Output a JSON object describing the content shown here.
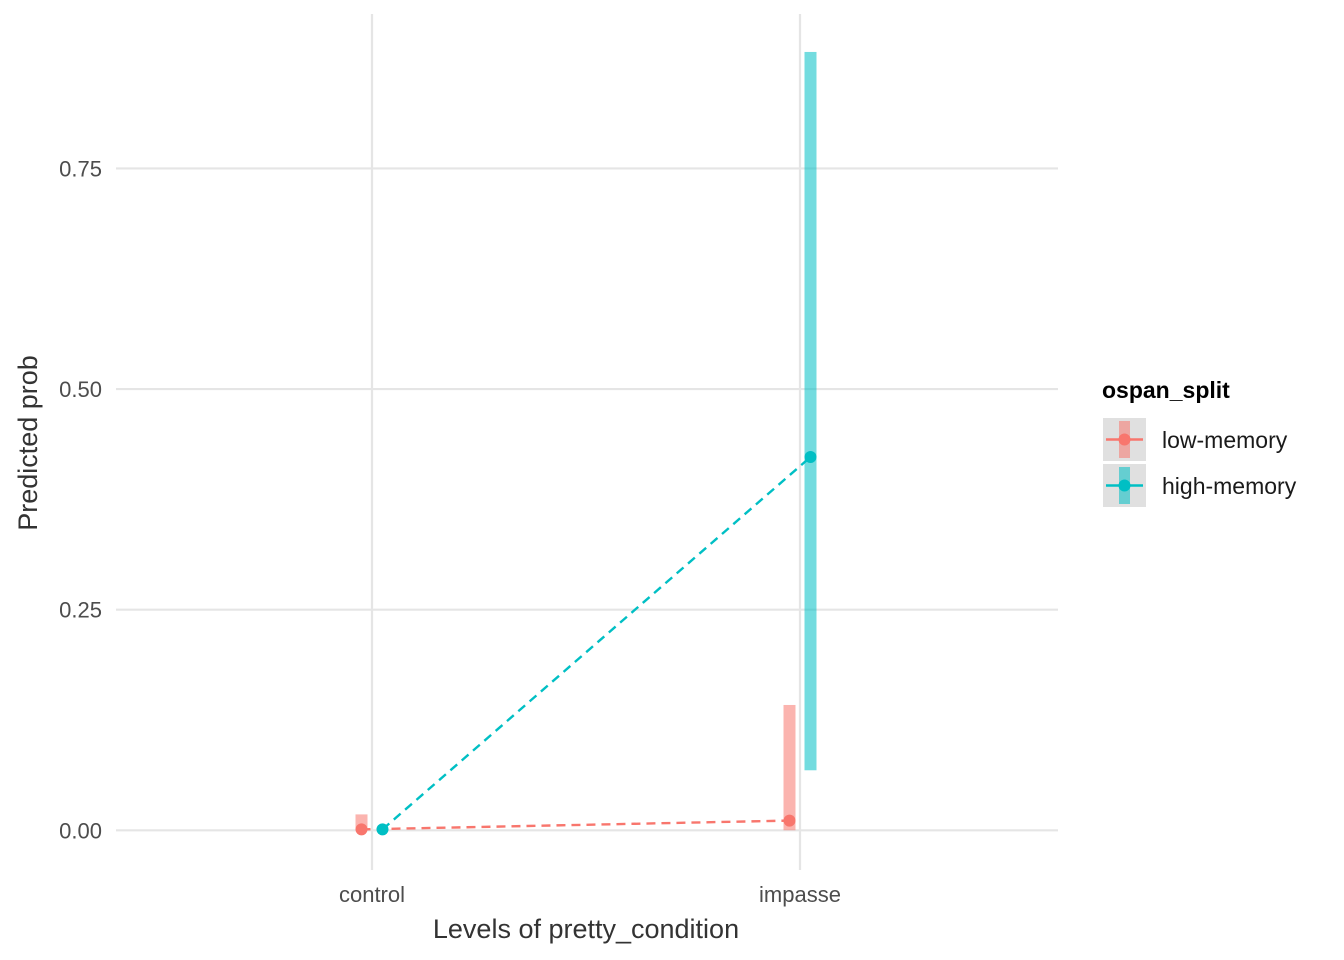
{
  "chart_data": {
    "type": "line",
    "title": "",
    "xlabel": "Levels of pretty_condition",
    "ylabel": "Predicted prob",
    "categories": [
      "control",
      "impasse"
    ],
    "ylim": [
      -0.045,
      0.925
    ],
    "yticks": [
      0.0,
      0.25,
      0.5,
      0.75
    ],
    "ytick_labels": [
      "0.00",
      "0.25",
      "0.50",
      "0.75"
    ],
    "grid": true,
    "legend": {
      "title": "ospan_split",
      "position": "right"
    },
    "series": [
      {
        "name": "low-memory",
        "color": "#F8766D",
        "values": [
          0.001,
          0.011
        ],
        "ci_low": [
          0.0,
          0.0
        ],
        "ci_high": [
          0.018,
          0.142
        ]
      },
      {
        "name": "high-memory",
        "color": "#00BFC4",
        "values": [
          0.001,
          0.423
        ],
        "ci_low": [
          0.0,
          0.068
        ],
        "ci_high": [
          0.0,
          0.882
        ]
      }
    ]
  }
}
